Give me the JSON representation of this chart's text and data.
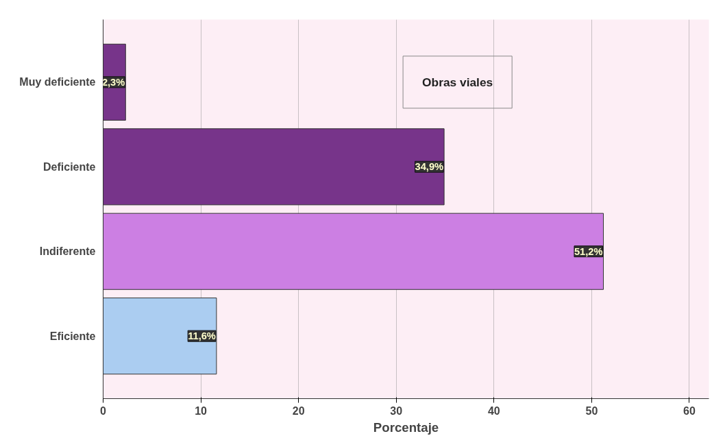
{
  "chart_data": {
    "type": "bar",
    "orientation": "horizontal",
    "title": "Obras viales",
    "xlabel": "Porcentaje",
    "categories": [
      "Muy deficiente",
      "Deficiente",
      "Indiferente",
      "Eficiente"
    ],
    "values": [
      2.3,
      34.9,
      51.2,
      11.6
    ],
    "colors": [
      "#77348a",
      "#77348a",
      "#cc7fe3",
      "#abcdf1"
    ],
    "value_labels": [
      "2,3%",
      "34,9%",
      "51,2%",
      "11,6%"
    ],
    "xlim": [
      0,
      62
    ],
    "xticks": [
      0,
      10,
      20,
      30,
      40,
      50,
      60
    ],
    "grid": "x"
  }
}
